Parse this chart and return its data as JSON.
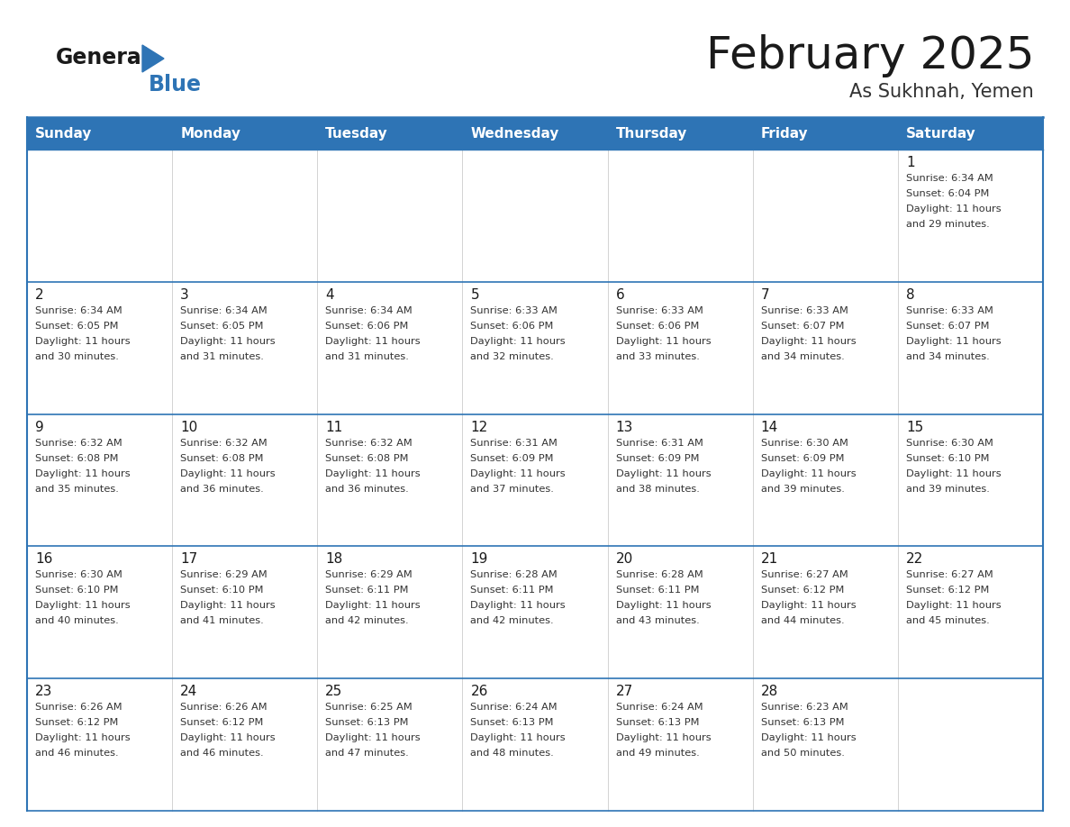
{
  "title": "February 2025",
  "subtitle": "As Sukhnah, Yemen",
  "days_of_week": [
    "Sunday",
    "Monday",
    "Tuesday",
    "Wednesday",
    "Thursday",
    "Friday",
    "Saturday"
  ],
  "header_bg": "#2E74B5",
  "header_text": "#FFFFFF",
  "border_color": "#2E74B5",
  "text_color": "#333333",
  "calendar": [
    [
      null,
      null,
      null,
      null,
      null,
      null,
      {
        "day": 1,
        "sunrise": "6:34 AM",
        "sunset": "6:04 PM",
        "daylight": "11 hours\nand 29 minutes."
      }
    ],
    [
      {
        "day": 2,
        "sunrise": "6:34 AM",
        "sunset": "6:05 PM",
        "daylight": "11 hours\nand 30 minutes."
      },
      {
        "day": 3,
        "sunrise": "6:34 AM",
        "sunset": "6:05 PM",
        "daylight": "11 hours\nand 31 minutes."
      },
      {
        "day": 4,
        "sunrise": "6:34 AM",
        "sunset": "6:06 PM",
        "daylight": "11 hours\nand 31 minutes."
      },
      {
        "day": 5,
        "sunrise": "6:33 AM",
        "sunset": "6:06 PM",
        "daylight": "11 hours\nand 32 minutes."
      },
      {
        "day": 6,
        "sunrise": "6:33 AM",
        "sunset": "6:06 PM",
        "daylight": "11 hours\nand 33 minutes."
      },
      {
        "day": 7,
        "sunrise": "6:33 AM",
        "sunset": "6:07 PM",
        "daylight": "11 hours\nand 34 minutes."
      },
      {
        "day": 8,
        "sunrise": "6:33 AM",
        "sunset": "6:07 PM",
        "daylight": "11 hours\nand 34 minutes."
      }
    ],
    [
      {
        "day": 9,
        "sunrise": "6:32 AM",
        "sunset": "6:08 PM",
        "daylight": "11 hours\nand 35 minutes."
      },
      {
        "day": 10,
        "sunrise": "6:32 AM",
        "sunset": "6:08 PM",
        "daylight": "11 hours\nand 36 minutes."
      },
      {
        "day": 11,
        "sunrise": "6:32 AM",
        "sunset": "6:08 PM",
        "daylight": "11 hours\nand 36 minutes."
      },
      {
        "day": 12,
        "sunrise": "6:31 AM",
        "sunset": "6:09 PM",
        "daylight": "11 hours\nand 37 minutes."
      },
      {
        "day": 13,
        "sunrise": "6:31 AM",
        "sunset": "6:09 PM",
        "daylight": "11 hours\nand 38 minutes."
      },
      {
        "day": 14,
        "sunrise": "6:30 AM",
        "sunset": "6:09 PM",
        "daylight": "11 hours\nand 39 minutes."
      },
      {
        "day": 15,
        "sunrise": "6:30 AM",
        "sunset": "6:10 PM",
        "daylight": "11 hours\nand 39 minutes."
      }
    ],
    [
      {
        "day": 16,
        "sunrise": "6:30 AM",
        "sunset": "6:10 PM",
        "daylight": "11 hours\nand 40 minutes."
      },
      {
        "day": 17,
        "sunrise": "6:29 AM",
        "sunset": "6:10 PM",
        "daylight": "11 hours\nand 41 minutes."
      },
      {
        "day": 18,
        "sunrise": "6:29 AM",
        "sunset": "6:11 PM",
        "daylight": "11 hours\nand 42 minutes."
      },
      {
        "day": 19,
        "sunrise": "6:28 AM",
        "sunset": "6:11 PM",
        "daylight": "11 hours\nand 42 minutes."
      },
      {
        "day": 20,
        "sunrise": "6:28 AM",
        "sunset": "6:11 PM",
        "daylight": "11 hours\nand 43 minutes."
      },
      {
        "day": 21,
        "sunrise": "6:27 AM",
        "sunset": "6:12 PM",
        "daylight": "11 hours\nand 44 minutes."
      },
      {
        "day": 22,
        "sunrise": "6:27 AM",
        "sunset": "6:12 PM",
        "daylight": "11 hours\nand 45 minutes."
      }
    ],
    [
      {
        "day": 23,
        "sunrise": "6:26 AM",
        "sunset": "6:12 PM",
        "daylight": "11 hours\nand 46 minutes."
      },
      {
        "day": 24,
        "sunrise": "6:26 AM",
        "sunset": "6:12 PM",
        "daylight": "11 hours\nand 46 minutes."
      },
      {
        "day": 25,
        "sunrise": "6:25 AM",
        "sunset": "6:13 PM",
        "daylight": "11 hours\nand 47 minutes."
      },
      {
        "day": 26,
        "sunrise": "6:24 AM",
        "sunset": "6:13 PM",
        "daylight": "11 hours\nand 48 minutes."
      },
      {
        "day": 27,
        "sunrise": "6:24 AM",
        "sunset": "6:13 PM",
        "daylight": "11 hours\nand 49 minutes."
      },
      {
        "day": 28,
        "sunrise": "6:23 AM",
        "sunset": "6:13 PM",
        "daylight": "11 hours\nand 50 minutes."
      },
      null
    ]
  ]
}
